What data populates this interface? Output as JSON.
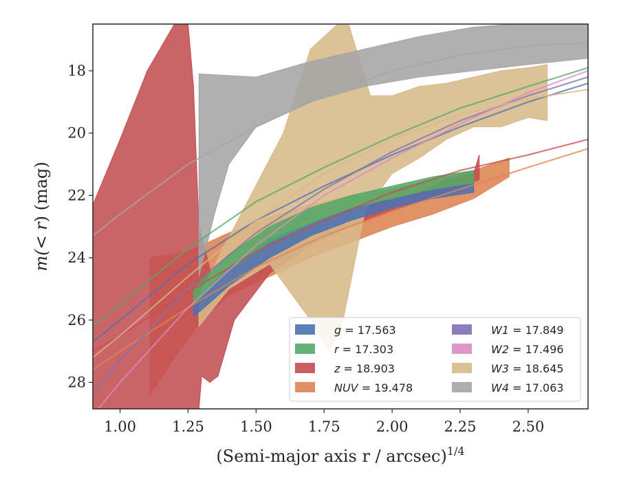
{
  "chart_data": {
    "type": "area",
    "xlabel": "(Semi-major axis r / arcsec)",
    "xlabel_exponent": "1/4",
    "ylabel_prefix": "m(",
    "ylabel_math": "< r",
    "ylabel_suffix": ") (mag)",
    "xlim": [
      0.9,
      2.72
    ],
    "ylim": [
      28.85,
      16.5
    ],
    "y_inverted": true,
    "x_ticks": [
      "1.00",
      "1.25",
      "1.50",
      "1.75",
      "2.00",
      "2.25",
      "2.50"
    ],
    "y_ticks": [
      "18",
      "20",
      "22",
      "24",
      "26",
      "28"
    ],
    "legend_position": "lower-right",
    "legend_columns": 2,
    "series": [
      {
        "band": "g",
        "value": "17.563",
        "color": "#4c72b0",
        "curve": [
          [
            0.9,
            26.7
          ],
          [
            1.0,
            26.0
          ],
          [
            1.25,
            24.2
          ],
          [
            1.5,
            22.8
          ],
          [
            1.75,
            21.7
          ],
          [
            2.0,
            20.7
          ],
          [
            2.25,
            19.8
          ],
          [
            2.5,
            19.0
          ],
          [
            2.72,
            18.4
          ]
        ],
        "band_upper": [
          [
            1.27,
            25.4
          ],
          [
            1.4,
            24.3
          ],
          [
            1.55,
            23.4
          ],
          [
            1.7,
            22.9
          ],
          [
            1.85,
            22.4
          ],
          [
            2.0,
            22.1
          ],
          [
            2.15,
            21.8
          ],
          [
            2.3,
            21.6
          ]
        ],
        "band_lower": [
          [
            1.27,
            25.9
          ],
          [
            1.4,
            24.9
          ],
          [
            1.55,
            24.0
          ],
          [
            1.7,
            23.3
          ],
          [
            1.85,
            22.8
          ],
          [
            2.0,
            22.4
          ],
          [
            2.15,
            22.1
          ],
          [
            2.3,
            21.9
          ]
        ]
      },
      {
        "band": "r",
        "value": "17.303",
        "color": "#55a868",
        "curve": [
          [
            0.9,
            26.2
          ],
          [
            1.0,
            25.5
          ],
          [
            1.25,
            23.7
          ],
          [
            1.5,
            22.2
          ],
          [
            1.75,
            21.1
          ],
          [
            2.0,
            20.1
          ],
          [
            2.25,
            19.2
          ],
          [
            2.5,
            18.5
          ],
          [
            2.72,
            17.9
          ]
        ],
        "band_upper": [
          [
            1.27,
            25.0
          ],
          [
            1.4,
            23.9
          ],
          [
            1.55,
            23.0
          ],
          [
            1.7,
            22.4
          ],
          [
            1.85,
            22.0
          ],
          [
            2.0,
            21.7
          ],
          [
            2.15,
            21.4
          ],
          [
            2.3,
            21.2
          ]
        ],
        "band_lower": [
          [
            1.27,
            25.5
          ],
          [
            1.4,
            24.4
          ],
          [
            1.55,
            23.5
          ],
          [
            1.7,
            22.9
          ],
          [
            1.85,
            22.4
          ],
          [
            2.0,
            22.1
          ],
          [
            2.15,
            21.8
          ],
          [
            2.3,
            21.6
          ]
        ]
      },
      {
        "band": "z",
        "value": "18.903",
        "color": "#c44e52",
        "curve": [
          [
            0.9,
            27.0
          ],
          [
            1.0,
            26.5
          ],
          [
            1.25,
            25.1
          ],
          [
            1.5,
            23.8
          ],
          [
            1.75,
            22.8
          ],
          [
            2.0,
            21.9
          ],
          [
            2.25,
            21.2
          ],
          [
            2.5,
            20.7
          ],
          [
            2.72,
            20.2
          ]
        ],
        "band_upper": [
          [
            0.9,
            22.3
          ],
          [
            1.0,
            20.2
          ],
          [
            1.1,
            18.0
          ],
          [
            1.2,
            16.5
          ],
          [
            1.25,
            16.5
          ],
          [
            1.27,
            18.5
          ],
          [
            1.29,
            23.0
          ],
          [
            1.35,
            25.0
          ],
          [
            1.4,
            24.9
          ],
          [
            1.55,
            23.7
          ],
          [
            1.7,
            23.0
          ],
          [
            1.85,
            22.5
          ],
          [
            2.0,
            22.1
          ],
          [
            2.1,
            21.9
          ],
          [
            2.2,
            21.5
          ],
          [
            2.3,
            21.3
          ],
          [
            2.32,
            20.7
          ]
        ],
        "band_lower": [
          [
            0.9,
            28.85
          ],
          [
            1.29,
            28.85
          ],
          [
            1.3,
            27.8
          ],
          [
            1.33,
            28.0
          ],
          [
            1.36,
            27.8
          ],
          [
            1.42,
            26.0
          ],
          [
            1.55,
            24.5
          ],
          [
            1.7,
            23.6
          ],
          [
            1.85,
            23.0
          ],
          [
            2.0,
            22.5
          ],
          [
            2.1,
            22.2
          ],
          [
            2.2,
            21.9
          ],
          [
            2.32,
            21.5
          ]
        ]
      },
      {
        "band": "NUV",
        "value": "19.478",
        "color": "#dd8452",
        "curve": [
          [
            0.9,
            27.6
          ],
          [
            1.0,
            27.0
          ],
          [
            1.25,
            25.6
          ],
          [
            1.5,
            24.3
          ],
          [
            1.75,
            23.3
          ],
          [
            2.0,
            22.5
          ],
          [
            2.25,
            21.8
          ],
          [
            2.5,
            21.1
          ],
          [
            2.72,
            20.5
          ]
        ],
        "band_upper": [
          [
            1.11,
            24.0
          ],
          [
            1.25,
            23.8
          ],
          [
            1.4,
            23.2
          ],
          [
            1.55,
            22.7
          ],
          [
            1.7,
            22.3
          ],
          [
            1.85,
            22.0
          ],
          [
            2.0,
            21.8
          ],
          [
            2.15,
            21.5
          ],
          [
            2.3,
            21.2
          ],
          [
            2.43,
            20.8
          ]
        ],
        "band_lower": [
          [
            1.11,
            28.4
          ],
          [
            1.2,
            27.2
          ],
          [
            1.3,
            26.0
          ],
          [
            1.4,
            25.2
          ],
          [
            1.55,
            24.6
          ],
          [
            1.7,
            24.0
          ],
          [
            1.85,
            23.5
          ],
          [
            2.0,
            23.0
          ],
          [
            2.15,
            22.6
          ],
          [
            2.3,
            22.1
          ],
          [
            2.43,
            21.4
          ]
        ]
      },
      {
        "band": "W1",
        "value": "17.849",
        "color": "#8172b2",
        "curve": [
          [
            0.9,
            28.4
          ],
          [
            1.0,
            27.3
          ],
          [
            1.25,
            25.0
          ],
          [
            1.5,
            23.2
          ],
          [
            1.75,
            21.8
          ],
          [
            2.0,
            20.6
          ],
          [
            2.25,
            19.6
          ],
          [
            2.5,
            18.8
          ],
          [
            2.72,
            18.2
          ]
        ],
        "band_upper": [],
        "band_lower": []
      },
      {
        "band": "W2",
        "value": "17.496",
        "color": "#da8bc3",
        "curve": [
          [
            0.92,
            28.85
          ],
          [
            1.0,
            28.0
          ],
          [
            1.25,
            25.6
          ],
          [
            1.5,
            23.6
          ],
          [
            1.75,
            22.0
          ],
          [
            2.0,
            20.8
          ],
          [
            2.25,
            19.7
          ],
          [
            2.5,
            18.7
          ],
          [
            2.72,
            18.0
          ]
        ],
        "band_upper": [],
        "band_lower": []
      },
      {
        "band": "W3",
        "value": "18.645",
        "color": "#d8b98a",
        "curve": [
          [
            0.9,
            27.2
          ],
          [
            1.0,
            26.5
          ],
          [
            1.25,
            24.6
          ],
          [
            1.5,
            22.8
          ],
          [
            1.75,
            21.3
          ],
          [
            2.0,
            20.2
          ],
          [
            2.25,
            19.4
          ],
          [
            2.5,
            18.9
          ],
          [
            2.72,
            18.6
          ]
        ],
        "band_upper": [
          [
            1.29,
            25.2
          ],
          [
            1.45,
            22.5
          ],
          [
            1.6,
            20.0
          ],
          [
            1.7,
            17.3
          ],
          [
            1.8,
            16.5
          ],
          [
            1.84,
            16.5
          ],
          [
            1.92,
            18.8
          ],
          [
            2.0,
            18.8
          ],
          [
            2.1,
            18.5
          ],
          [
            2.2,
            18.4
          ],
          [
            2.3,
            18.2
          ],
          [
            2.4,
            18.0
          ],
          [
            2.5,
            17.9
          ],
          [
            2.57,
            17.8
          ]
        ],
        "band_lower": [
          [
            1.29,
            26.2
          ],
          [
            1.4,
            25.0
          ],
          [
            1.55,
            24.2
          ],
          [
            1.7,
            26.0
          ],
          [
            1.77,
            27.0
          ],
          [
            1.82,
            26.0
          ],
          [
            1.9,
            22.5
          ],
          [
            2.0,
            21.3
          ],
          [
            2.1,
            20.8
          ],
          [
            2.2,
            20.2
          ],
          [
            2.3,
            19.8
          ],
          [
            2.4,
            19.8
          ],
          [
            2.5,
            19.5
          ],
          [
            2.57,
            19.6
          ]
        ]
      },
      {
        "band": "W4",
        "value": "17.063",
        "color": "#a5a5a5",
        "curve": [
          [
            0.9,
            23.3
          ],
          [
            1.0,
            22.6
          ],
          [
            1.25,
            21.0
          ],
          [
            1.5,
            19.8
          ],
          [
            1.75,
            18.8
          ],
          [
            2.0,
            18.0
          ],
          [
            2.25,
            17.5
          ],
          [
            2.5,
            17.2
          ],
          [
            2.72,
            17.1
          ]
        ],
        "band_upper": [
          [
            1.29,
            18.1
          ],
          [
            1.5,
            18.2
          ],
          [
            1.7,
            17.7
          ],
          [
            1.9,
            17.3
          ],
          [
            2.1,
            16.9
          ],
          [
            2.3,
            16.6
          ],
          [
            2.45,
            16.5
          ],
          [
            2.72,
            16.5
          ]
        ],
        "band_lower": [
          [
            1.29,
            24.6
          ],
          [
            1.35,
            22.5
          ],
          [
            1.4,
            21.0
          ],
          [
            1.5,
            19.8
          ],
          [
            1.7,
            19.0
          ],
          [
            1.9,
            18.5
          ],
          [
            2.1,
            18.2
          ],
          [
            2.3,
            18.0
          ],
          [
            2.5,
            17.8
          ],
          [
            2.72,
            17.6
          ]
        ]
      }
    ]
  }
}
